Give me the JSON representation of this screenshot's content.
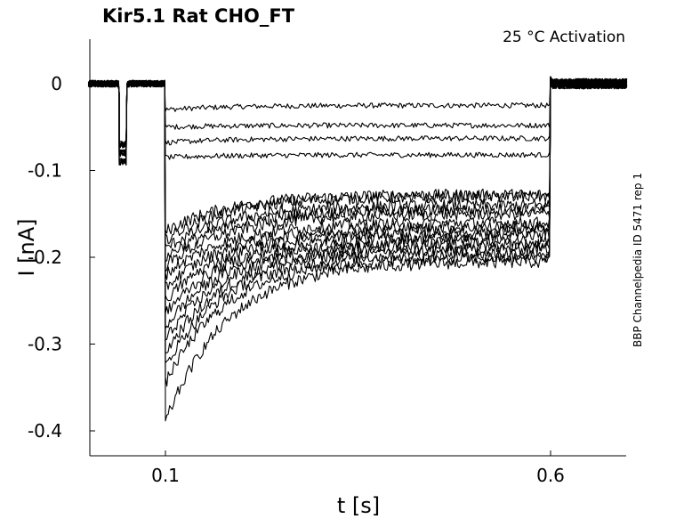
{
  "chart_data": {
    "type": "line",
    "title": "Kir5.1  Rat  CHO_FT",
    "subtitle": "25 °C  Activation",
    "side_label": "BBP Channelpedia ID 5471 rep 1",
    "xlabel": "t [s]",
    "ylabel": "I [nA]",
    "xlim": [
      0.0,
      0.7
    ],
    "ylim": [
      -0.43,
      0.05
    ],
    "xticks": [
      0.1,
      0.6
    ],
    "xtick_labels": [
      "0.1",
      "0.6"
    ],
    "yticks": [
      0,
      -0.1,
      -0.2,
      -0.3,
      -0.4
    ],
    "ytick_labels": [
      "0",
      "-0.1",
      "-0.2",
      "-0.3",
      "-0.4"
    ],
    "grid": false,
    "legend": "none",
    "line_color": "#000000",
    "protocol": {
      "baseline_end": 0.04,
      "prepulse_start": 0.04,
      "prepulse_end": 0.05,
      "prepulse_level": -0.07,
      "step_start": 0.1,
      "step_end": 0.6,
      "trace_end": 0.7
    },
    "series": [
      {
        "peak": -0.03,
        "steady": -0.025
      },
      {
        "peak": -0.05,
        "steady": -0.048
      },
      {
        "peak": -0.068,
        "steady": -0.063
      },
      {
        "peak": -0.085,
        "steady": -0.082
      },
      {
        "peak": -0.17,
        "steady": -0.128
      },
      {
        "peak": -0.18,
        "steady": -0.13
      },
      {
        "peak": -0.19,
        "steady": -0.14
      },
      {
        "peak": -0.2,
        "steady": -0.145
      },
      {
        "peak": -0.21,
        "steady": -0.15
      },
      {
        "peak": -0.22,
        "steady": -0.16
      },
      {
        "peak": -0.235,
        "steady": -0.165
      },
      {
        "peak": -0.25,
        "steady": -0.17
      },
      {
        "peak": -0.265,
        "steady": -0.175
      },
      {
        "peak": -0.28,
        "steady": -0.18
      },
      {
        "peak": -0.295,
        "steady": -0.185
      },
      {
        "peak": -0.31,
        "steady": -0.19
      },
      {
        "peak": -0.325,
        "steady": -0.195
      },
      {
        "peak": -0.345,
        "steady": -0.2
      },
      {
        "peak": -0.39,
        "steady": -0.205
      }
    ]
  }
}
